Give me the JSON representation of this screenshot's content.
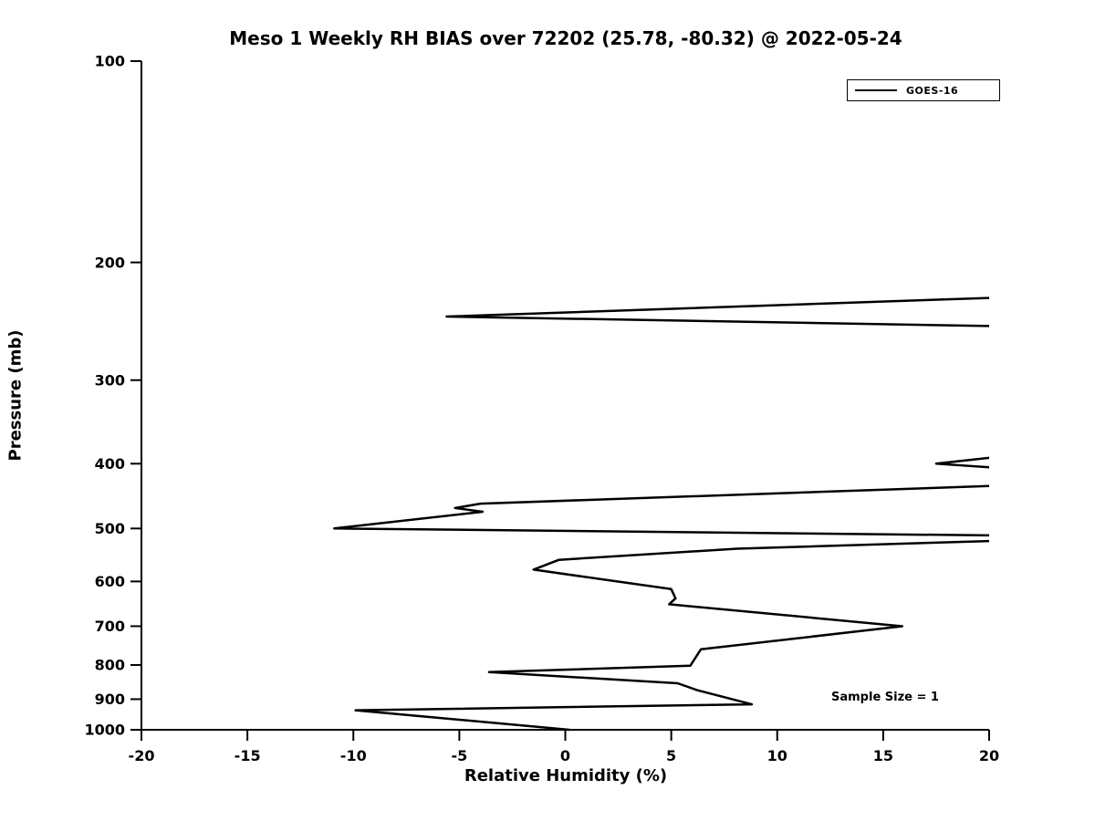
{
  "chart_data": {
    "type": "line",
    "title": "Meso 1 Weekly RH BIAS over 72202 (25.78, -80.32) @ 2022-05-24",
    "xlabel": "Relative Humidity (%)",
    "ylabel": "Pressure (mb)",
    "xlim": [
      -20,
      20
    ],
    "ylim": [
      100,
      1000
    ],
    "yscale": "log",
    "y_inverted": true,
    "xticks": [
      -20,
      -15,
      -10,
      -5,
      0,
      5,
      10,
      15,
      20
    ],
    "yticks": [
      100,
      200,
      300,
      400,
      500,
      600,
      700,
      800,
      900,
      1000
    ],
    "grid": false,
    "legend": {
      "position": "top-right",
      "entries": [
        {
          "label": "GOES-16",
          "color": "#000000"
        }
      ]
    },
    "annotation": "Sample Size = 1",
    "series": [
      {
        "name": "GOES-16",
        "color": "#000000",
        "linewidth": 2.5,
        "segments": [
          [
            [
              20,
              226
            ],
            [
              -5.6,
              241
            ],
            [
              20,
              249
            ]
          ],
          [
            [
              20,
              392
            ],
            [
              17.5,
              400
            ],
            [
              20,
              405
            ]
          ],
          [
            [
              20,
              432
            ],
            [
              -4.0,
              459
            ],
            [
              -5.2,
              466
            ],
            [
              -3.9,
              472
            ],
            [
              -10.9,
              500
            ],
            [
              20,
              512
            ]
          ],
          [
            [
              20,
              522
            ],
            [
              8.1,
              536
            ],
            [
              -0.3,
              557
            ],
            [
              -1.5,
              576
            ],
            [
              5.0,
              616
            ],
            [
              5.2,
              636
            ],
            [
              4.9,
              649
            ],
            [
              15.9,
              700
            ],
            [
              6.4,
              758
            ],
            [
              5.9,
              802
            ],
            [
              -3.6,
              820
            ],
            [
              5.3,
              852
            ],
            [
              6.2,
              872
            ],
            [
              8.8,
              916
            ],
            [
              -9.9,
              935
            ],
            [
              0.2,
              1000
            ]
          ]
        ]
      }
    ]
  }
}
